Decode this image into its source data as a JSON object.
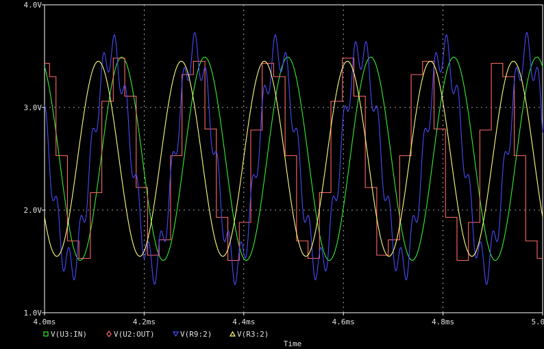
{
  "chart_data": {
    "type": "line",
    "xlabel": "Time",
    "xlim": [
      4.0,
      5.0
    ],
    "ylim": [
      1.0,
      4.0
    ],
    "x_unit": "ms",
    "y_unit": "V",
    "grid": true,
    "legend_position": "bottom-left",
    "x_ticks": [
      {
        "value": 4.0,
        "label": "4.0ms"
      },
      {
        "value": 4.2,
        "label": "4.2ms"
      },
      {
        "value": 4.4,
        "label": "4.4ms"
      },
      {
        "value": 4.6,
        "label": "4.6ms"
      },
      {
        "value": 4.8,
        "label": "4.8ms"
      },
      {
        "value": 5.0,
        "label": "5.0ms"
      }
    ],
    "y_ticks": [
      {
        "value": 1.0,
        "label": "1.0V"
      },
      {
        "value": 2.0,
        "label": "2.0V"
      },
      {
        "value": 3.0,
        "label": "3.0V"
      },
      {
        "value": 4.0,
        "label": "4.0V"
      }
    ],
    "series": [
      {
        "name": "V(U3:IN)",
        "color": "#33ee33",
        "marker": "square",
        "style": "sine",
        "mean": 2.5,
        "amplitude": 0.99,
        "frequency_khz": 6.0,
        "peak_time_ms": 4.155
      },
      {
        "name": "V(U2:OUT)",
        "color": "#ff6a6a",
        "marker": "diamond",
        "style": "staircase",
        "x": [
          4.0,
          4.01,
          4.023,
          4.046,
          4.069,
          4.092,
          4.115,
          4.138,
          4.161,
          4.184,
          4.207,
          4.23,
          4.253,
          4.276,
          4.299,
          4.322,
          4.345,
          4.368,
          4.391,
          4.414,
          4.437,
          4.46,
          4.483,
          4.506,
          4.529,
          4.552,
          4.575,
          4.598,
          4.621,
          4.644,
          4.667,
          4.69,
          4.713,
          4.736,
          4.759,
          4.782,
          4.805,
          4.828,
          4.851,
          4.874,
          4.897,
          4.92,
          4.943,
          4.966,
          4.989,
          5.0
        ],
        "y": [
          3.43,
          3.3,
          2.53,
          1.7,
          1.53,
          2.17,
          3.06,
          3.48,
          3.11,
          2.22,
          1.56,
          1.71,
          2.53,
          3.32,
          3.45,
          2.79,
          1.93,
          1.51,
          1.88,
          2.78,
          3.43,
          3.3,
          2.53,
          1.7,
          1.53,
          2.17,
          3.06,
          3.48,
          3.11,
          2.22,
          1.56,
          1.71,
          2.53,
          3.32,
          3.45,
          2.79,
          1.93,
          1.51,
          1.88,
          2.78,
          3.43,
          3.3,
          2.53,
          1.7,
          1.53,
          1.53
        ]
      },
      {
        "name": "V(R9:2)",
        "color": "#4a4aff",
        "marker": "triangle-down",
        "style": "filtered",
        "mean": 2.5,
        "amplitude": 1.05,
        "frequency_khz": 6.0,
        "peak_time_ms": 4.135,
        "ripple_amplitude": 0.18,
        "ripple_frequency_khz": 43.5
      },
      {
        "name": "V(R3:2)",
        "color": "#ffff80",
        "marker": "triangle-up",
        "style": "sine",
        "mean": 2.5,
        "amplitude": 0.95,
        "frequency_khz": 6.0,
        "peak_time_ms": 4.108
      }
    ]
  }
}
